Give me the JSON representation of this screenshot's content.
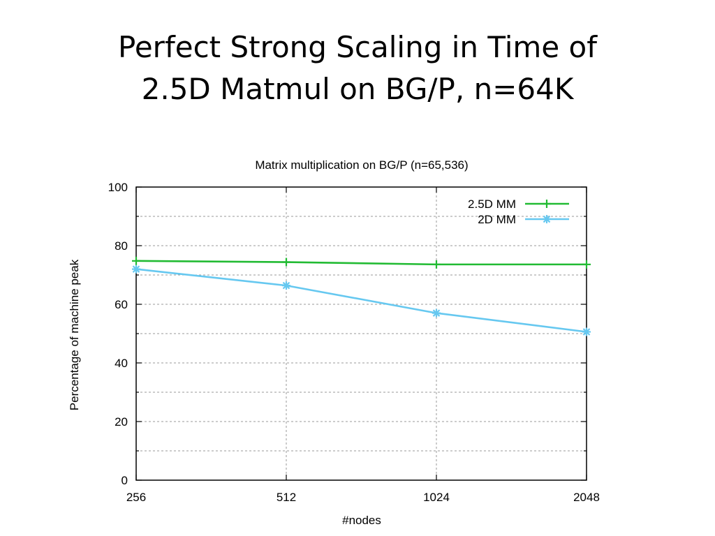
{
  "slide": {
    "title_line1": "Perfect Strong Scaling in Time of",
    "title_line2": "2.5D Matmul on BG/P, n=64K"
  },
  "chart_data": {
    "type": "line",
    "title": "Matrix multiplication on BG/P (n=65,536)",
    "xlabel": "#nodes",
    "ylabel": "Percentage of machine peak",
    "x": [
      256,
      512,
      1024,
      2048
    ],
    "x_scale": "log2",
    "x_tick_labels": [
      "256",
      "512",
      "1024",
      "2048"
    ],
    "ylim": [
      0,
      100
    ],
    "y_ticks": [
      0,
      20,
      40,
      60,
      80,
      100
    ],
    "y_tick_labels": [
      "0",
      "20",
      "40",
      "60",
      "80",
      "100"
    ],
    "grid": true,
    "legend_position": "top-right",
    "series": [
      {
        "name": "2.5D MM",
        "color": "#22bb33",
        "marker": "plus",
        "values": [
          74.8,
          74.4,
          73.6,
          73.6
        ]
      },
      {
        "name": "2D MM",
        "color": "#66c8f0",
        "marker": "star",
        "values": [
          72.0,
          66.4,
          57.0,
          50.6
        ]
      }
    ]
  }
}
